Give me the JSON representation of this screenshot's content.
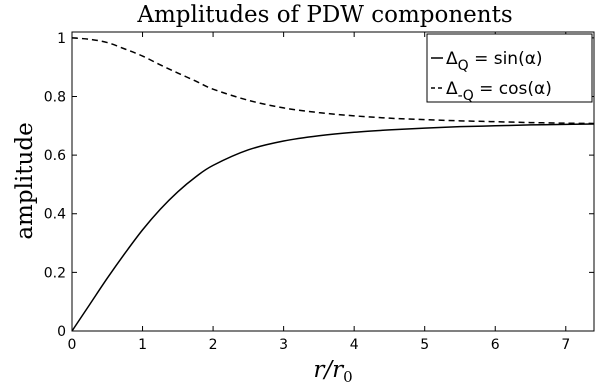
{
  "chart_data": {
    "type": "line",
    "title": "Amplitudes of PDW components",
    "xlabel": "r/r",
    "xlabel_subscript": "0",
    "ylabel": "amplitude",
    "xlim": [
      0,
      7.4
    ],
    "ylim": [
      0,
      1.02
    ],
    "xticks": [
      "0",
      "1",
      "2",
      "3",
      "4",
      "5",
      "6",
      "7"
    ],
    "yticks": [
      "0",
      "0.2",
      "0.4",
      "0.6",
      "0.8",
      "1"
    ],
    "grid": false,
    "legend_position": "top-right",
    "series": [
      {
        "name": "Δ_Q = sin(α)",
        "legend_main": "Δ",
        "legend_sub": "Q",
        "legend_rest": " = sin(α)",
        "style": "solid",
        "color": "#000000",
        "x": [
          0,
          0.25,
          0.5,
          0.75,
          1.0,
          1.25,
          1.5,
          1.75,
          2.0,
          2.5,
          3.0,
          3.5,
          4.0,
          4.5,
          5.0,
          5.5,
          6.0,
          6.5,
          7.0,
          7.4
        ],
        "y": [
          0,
          0.09,
          0.18,
          0.265,
          0.345,
          0.415,
          0.475,
          0.525,
          0.565,
          0.618,
          0.648,
          0.666,
          0.678,
          0.686,
          0.692,
          0.697,
          0.7,
          0.703,
          0.705,
          0.706
        ]
      },
      {
        "name": "Δ_-Q = cos(α)",
        "legend_main": "Δ",
        "legend_sub": "-Q",
        "legend_rest": " = cos(α)",
        "style": "dashed",
        "color": "#000000",
        "x": [
          0,
          0.25,
          0.5,
          0.75,
          1.0,
          1.25,
          1.5,
          1.75,
          2.0,
          2.5,
          3.0,
          3.5,
          4.0,
          4.5,
          5.0,
          5.5,
          6.0,
          6.5,
          7.0,
          7.4
        ],
        "y": [
          1.0,
          0.995,
          0.984,
          0.962,
          0.938,
          0.908,
          0.88,
          0.853,
          0.825,
          0.787,
          0.761,
          0.745,
          0.734,
          0.726,
          0.721,
          0.717,
          0.714,
          0.711,
          0.709,
          0.708
        ]
      }
    ]
  }
}
